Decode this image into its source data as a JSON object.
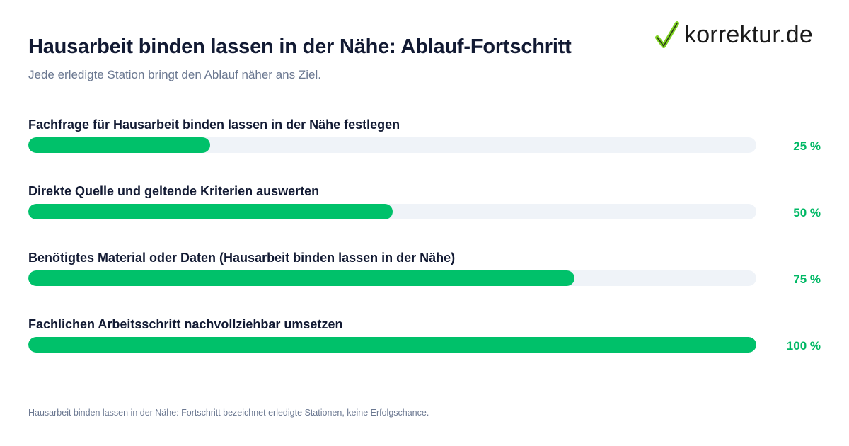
{
  "title": "Hausarbeit binden lassen in der Nähe: Ablauf-Fortschritt",
  "subtitle": "Jede erledigte Station bringt den Ablauf näher ans Ziel.",
  "logo": {
    "text": "korrektur.de",
    "icon": "checkmark-icon",
    "check_color": "#7ed321"
  },
  "colors": {
    "fill": "#00c16a",
    "track": "#eff3f8",
    "percent": "#00b865"
  },
  "footnote": "Hausarbeit binden lassen in der Nähe: Fortschritt bezeichnet erledigte Stationen, keine Erfolgschance.",
  "chart_data": {
    "type": "bar",
    "orientation": "horizontal",
    "ylim": [
      0,
      100
    ],
    "unit": "%",
    "categories": [
      "Fachfrage für Hausarbeit binden lassen in der Nähe festlegen",
      "Direkte Quelle und geltende Kriterien auswerten",
      "Benötigtes Material oder Daten (Hausarbeit binden lassen in der Nähe)",
      "Fachlichen Arbeitsschritt nachvollziehbar umsetzen"
    ],
    "values": [
      25,
      50,
      75,
      100
    ],
    "value_labels": [
      "25 %",
      "50 %",
      "75 %",
      "100 %"
    ]
  }
}
